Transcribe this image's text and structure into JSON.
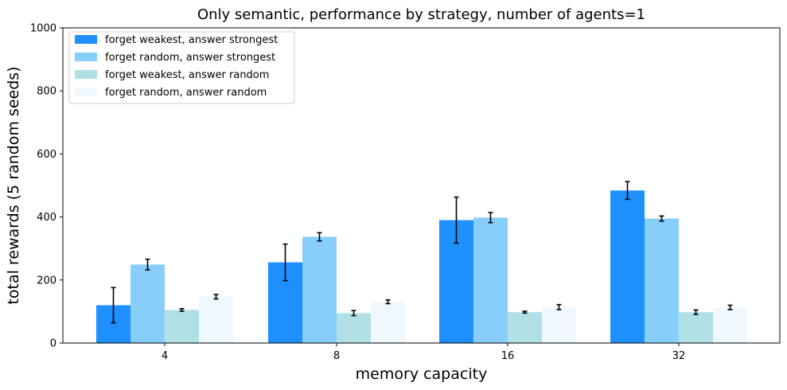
{
  "chart_data": {
    "type": "bar",
    "title": "Only semantic, performance by strategy, number of agents=1",
    "xlabel": "memory capacity",
    "ylabel": "total rewards (5 random seeds)",
    "categories": [
      "4",
      "8",
      "16",
      "32"
    ],
    "ylim": [
      0,
      1000
    ],
    "yticks": [
      0,
      200,
      400,
      600,
      800,
      1000
    ],
    "grid": false,
    "legend_position": "top-left",
    "error_bars": true,
    "series": [
      {
        "name": "forget weakest, answer strongest",
        "color": "#1e90ff",
        "values": [
          120,
          256,
          390,
          484
        ],
        "errors": [
          56,
          58,
          73,
          28
        ]
      },
      {
        "name": "forget random, answer strongest",
        "color": "#87cefa",
        "values": [
          249,
          337,
          398,
          395
        ],
        "errors": [
          17,
          13,
          16,
          8
        ]
      },
      {
        "name": "forget weakest, answer random",
        "color": "#b0e0e6",
        "values": [
          105,
          95,
          98,
          98
        ],
        "errors": [
          4,
          8,
          3,
          7
        ]
      },
      {
        "name": "forget random, answer random",
        "color": "#f0f8ff",
        "values": [
          147,
          131,
          114,
          113
        ],
        "errors": [
          7,
          6,
          8,
          7
        ]
      }
    ]
  }
}
